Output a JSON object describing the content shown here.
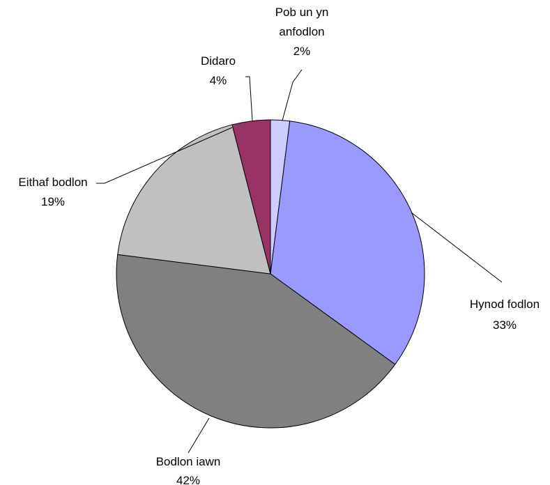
{
  "chart_data": {
    "type": "pie",
    "categories": [
      "Pob un yn anfodlon",
      "Hynod fodlon",
      "Bodlon iawn",
      "Eithaf bodlon",
      "Didaro"
    ],
    "values": [
      2,
      33,
      42,
      19,
      4
    ],
    "value_labels": [
      "2%",
      "33%",
      "42%",
      "19%",
      "4%"
    ],
    "colors": [
      "#ccccff",
      "#9999ff",
      "#808080",
      "#c0c0c0",
      "#993366"
    ]
  }
}
